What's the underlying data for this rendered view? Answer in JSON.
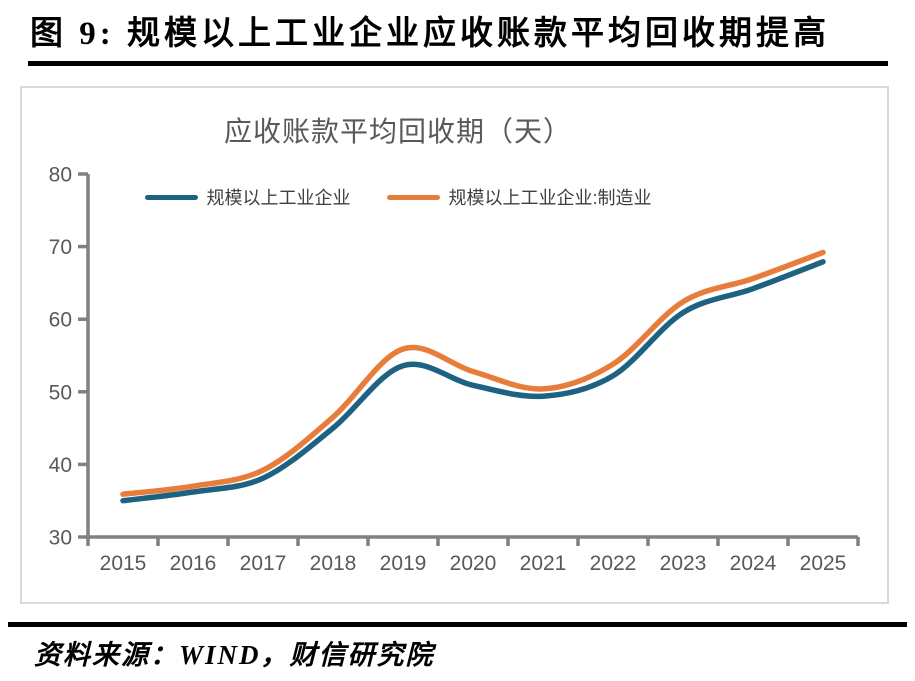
{
  "header": {
    "title": "图 9:  规模以上工业企业应收账款平均回收期提高"
  },
  "chart": {
    "colors": {
      "series1": "#1E6281",
      "series2": "#E87D3B",
      "axis": "#808080",
      "tick_label": "#595959",
      "title_text": "#595959",
      "legend_text": "#404040",
      "card_border": "#D9D9D9",
      "rule": "#000000"
    }
  },
  "chart_data": {
    "type": "line",
    "title": "应收账款平均回收期（天）",
    "categories": [
      "2015",
      "2016",
      "2017",
      "2018",
      "2019",
      "2020",
      "2021",
      "2022",
      "2023",
      "2024",
      "2025"
    ],
    "series": [
      {
        "name": "规模以上工业企业",
        "color": "#1E6281",
        "values": [
          35.0,
          36.2,
          38.1,
          45.0,
          53.6,
          50.9,
          49.4,
          52.2,
          60.9,
          64.2,
          67.9
        ]
      },
      {
        "name": "规模以上工业企业:制造业",
        "color": "#E87D3B",
        "values": [
          35.9,
          37.0,
          39.2,
          46.5,
          55.9,
          52.8,
          50.4,
          53.8,
          62.4,
          65.6,
          69.2
        ]
      }
    ],
    "ylim": [
      30,
      80
    ],
    "yticks": [
      30,
      40,
      50,
      60,
      70,
      80
    ],
    "xlabel": "",
    "ylabel": "",
    "grid": false,
    "legend_position": "top-center"
  },
  "footer": {
    "source": "资料来源：WIND，财信研究院"
  }
}
